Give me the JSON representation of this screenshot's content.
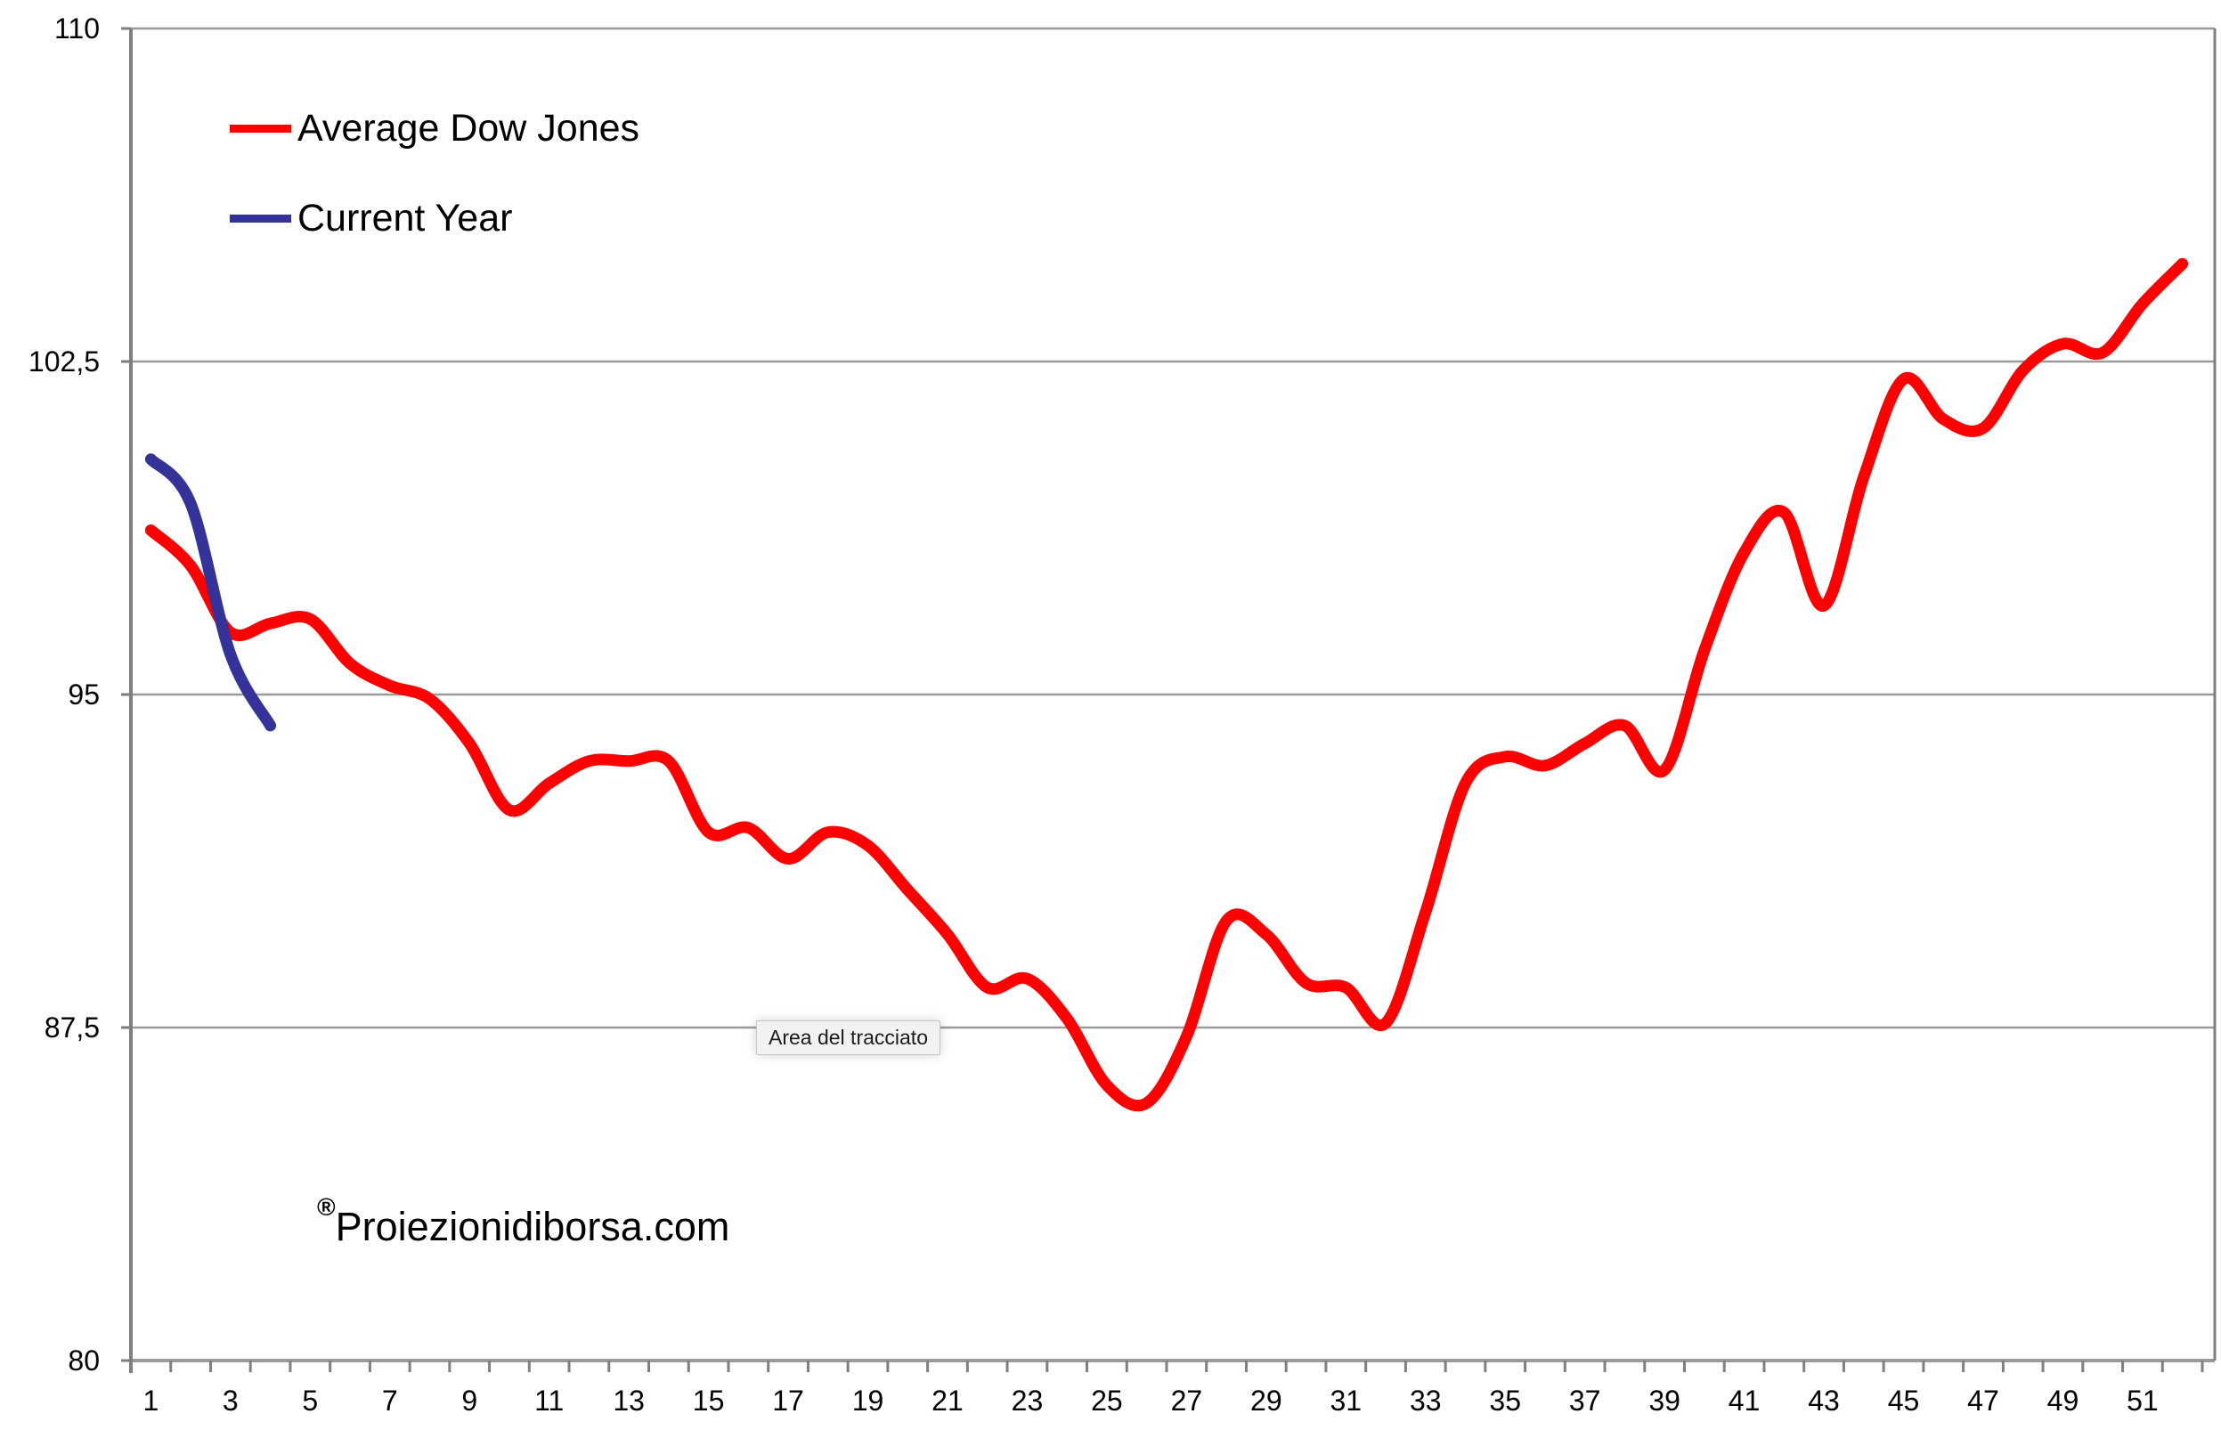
{
  "legend": {
    "items": [
      {
        "label": "Average Dow Jones",
        "color": "#FF0000"
      },
      {
        "label": "Current Year",
        "color": "#333399"
      }
    ]
  },
  "tooltip": {
    "text": "Area del tracciato"
  },
  "watermark": {
    "symbol": "®",
    "text": "Proiezionidiborsa.com"
  },
  "chart_data": {
    "type": "line",
    "title": "",
    "xlabel": "",
    "ylabel": "",
    "ylim": [
      80,
      110
    ],
    "x_range": [
      1,
      52
    ],
    "grid": "horizontal",
    "legend_position": "top-left-inside",
    "colors": {
      "gridline": "#9a9a9a",
      "axis": "#7f7f7f",
      "text": "#000000"
    },
    "y_ticks": [
      {
        "value": 80,
        "label": "80"
      },
      {
        "value": 87.5,
        "label": "87,5"
      },
      {
        "value": 95,
        "label": "95"
      },
      {
        "value": 102.5,
        "label": "102,5"
      },
      {
        "value": 110,
        "label": "110"
      }
    ],
    "x_tick_labels": [
      "1",
      "3",
      "5",
      "7",
      "9",
      "11",
      "13",
      "15",
      "17",
      "19",
      "21",
      "23",
      "25",
      "27",
      "29",
      "31",
      "33",
      "35",
      "37",
      "39",
      "41",
      "43",
      "45",
      "47",
      "49",
      "51"
    ],
    "series": [
      {
        "name": "Average Dow Jones",
        "color": "#FF0000",
        "smooth": true,
        "x": [
          1,
          2,
          3,
          4,
          5,
          6,
          7,
          8,
          9,
          10,
          11,
          12,
          13,
          14,
          15,
          16,
          17,
          18,
          19,
          20,
          21,
          22,
          23,
          24,
          25,
          26,
          27,
          28,
          29,
          30,
          31,
          32,
          33,
          34,
          35,
          36,
          37,
          38,
          39,
          40,
          41,
          42,
          43,
          44,
          45,
          46,
          47,
          48,
          49,
          50,
          51,
          52
        ],
        "values": [
          98.7,
          97.9,
          96.4,
          96.6,
          96.7,
          95.7,
          95.2,
          94.9,
          93.9,
          92.4,
          93.0,
          93.5,
          93.5,
          93.5,
          91.9,
          92.0,
          91.3,
          91.9,
          91.6,
          90.6,
          89.6,
          88.4,
          88.6,
          87.7,
          86.2,
          85.8,
          87.3,
          89.9,
          89.6,
          88.5,
          88.4,
          87.6,
          90.1,
          93.0,
          93.6,
          93.4,
          93.9,
          94.3,
          93.3,
          96.0,
          98.2,
          99.1,
          97.0,
          99.9,
          102.1,
          101.2,
          101.0,
          102.3,
          102.9,
          102.7,
          103.8,
          104.7
        ]
      },
      {
        "name": "Current Year",
        "color": "#333399",
        "smooth": true,
        "x": [
          1,
          2,
          3,
          4
        ],
        "values": [
          100.3,
          99.3,
          95.9,
          94.3
        ]
      }
    ]
  }
}
